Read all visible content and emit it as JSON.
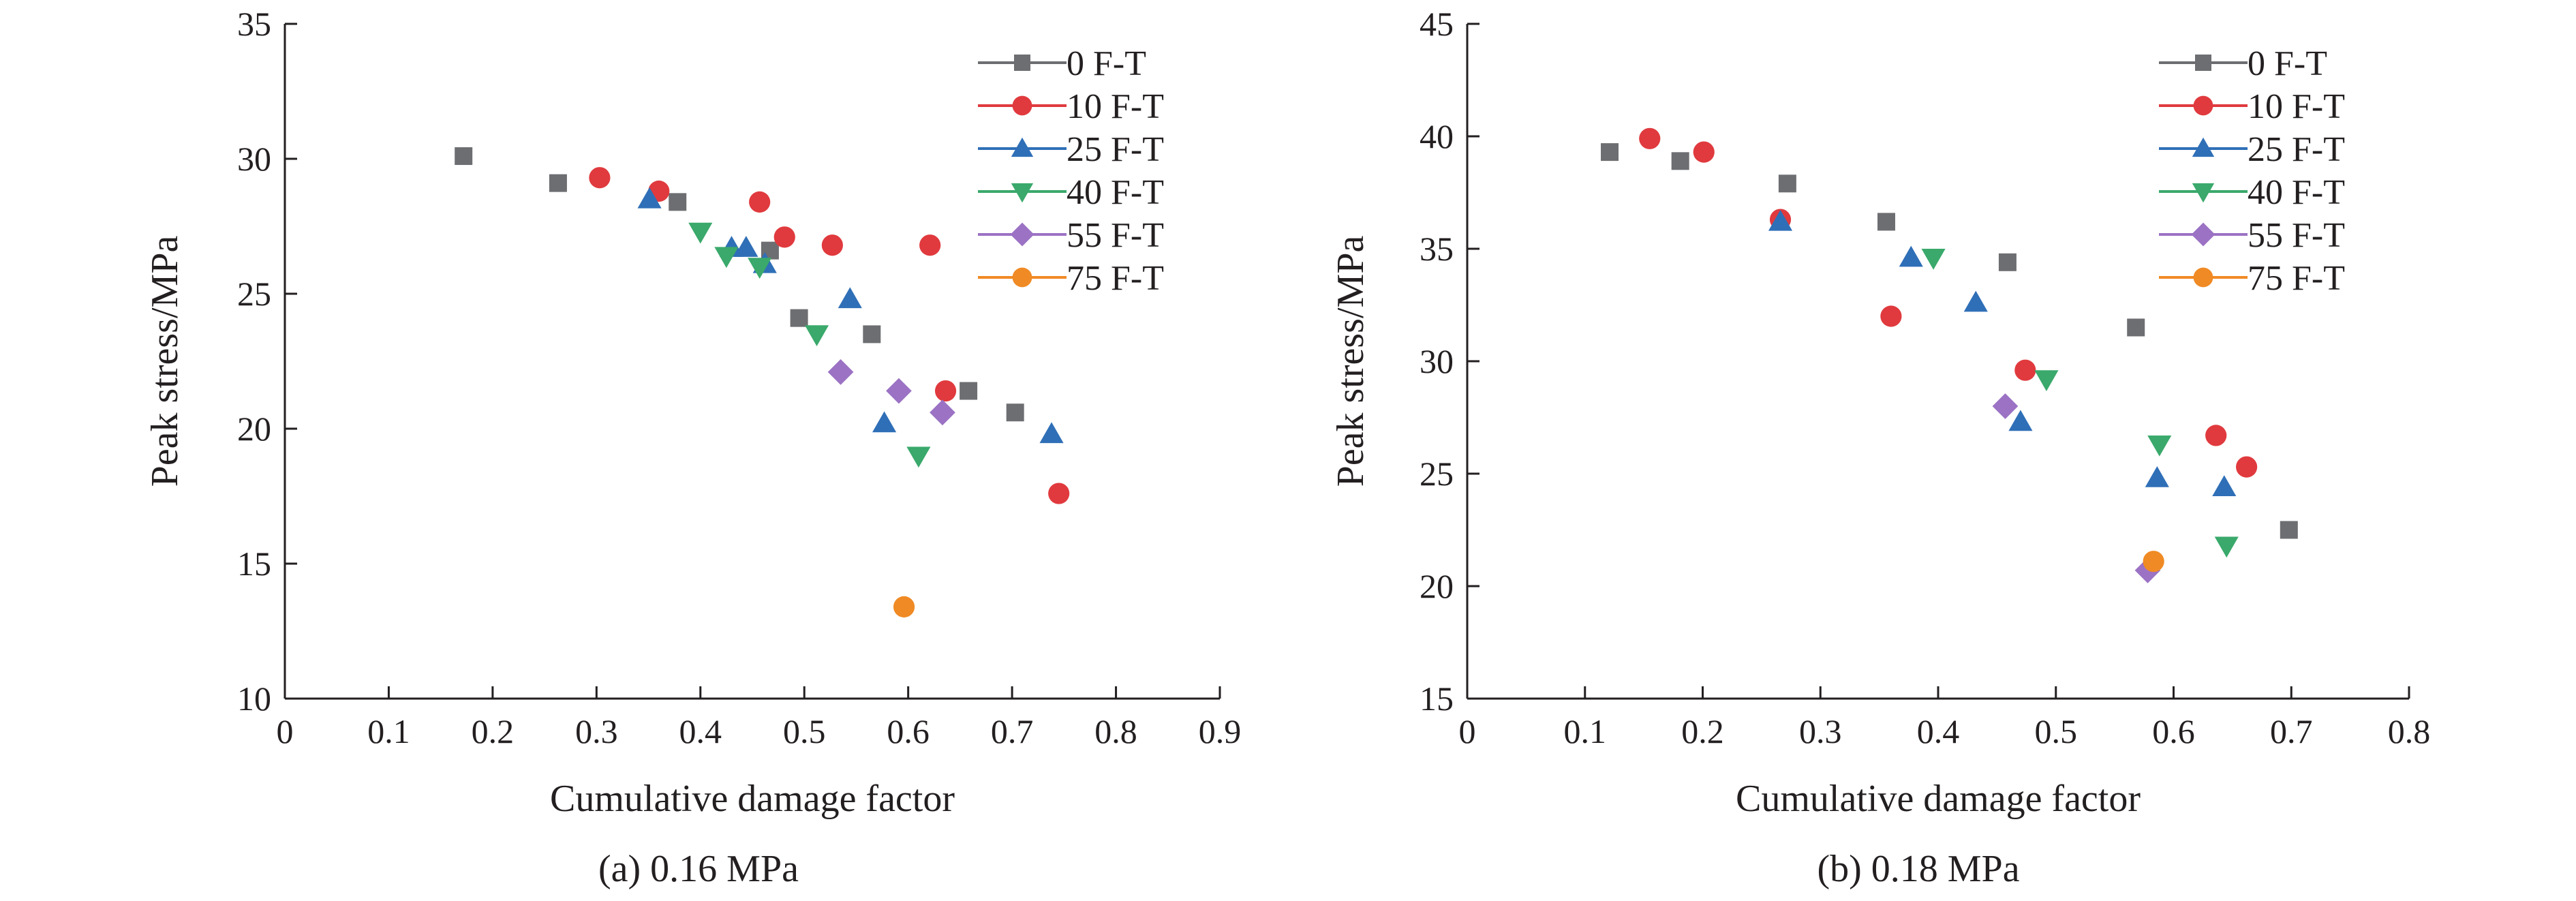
{
  "colors": {
    "axis": "#231f20",
    "series": [
      "#6d6e71",
      "#e03a3e",
      "#2f6fb7",
      "#3aa96b",
      "#9b72c4",
      "#f08a24"
    ]
  },
  "chart_data": [
    {
      "type": "scatter",
      "caption": "(a) 0.16 MPa",
      "xlabel": "Cumulative damage factor",
      "ylabel": "Peak stress/MPa",
      "xlim": [
        0,
        0.9
      ],
      "ylim": [
        10,
        35
      ],
      "x_ticks": [
        "0",
        "0.1",
        "0.2",
        "0.3",
        "0.4",
        "0.5",
        "0.6",
        "0.7",
        "0.8",
        "0.9"
      ],
      "y_ticks": [
        "10",
        "15",
        "20",
        "25",
        "30",
        "35"
      ],
      "legend_position": "top-right",
      "series": [
        {
          "name": "0  F-T",
          "marker": "square",
          "color": "#6d6e71",
          "points": [
            [
              0.172,
              30.1
            ],
            [
              0.263,
              29.1
            ],
            [
              0.378,
              28.4
            ],
            [
              0.467,
              26.6
            ],
            [
              0.495,
              24.1
            ],
            [
              0.565,
              23.5
            ],
            [
              0.658,
              21.4
            ],
            [
              0.703,
              20.6
            ]
          ]
        },
        {
          "name": "10 F-T",
          "marker": "circle",
          "color": "#e03a3e",
          "points": [
            [
              0.303,
              29.3
            ],
            [
              0.36,
              28.8
            ],
            [
              0.457,
              28.4
            ],
            [
              0.481,
              27.1
            ],
            [
              0.527,
              26.8
            ],
            [
              0.621,
              26.8
            ],
            [
              0.636,
              21.4
            ],
            [
              0.745,
              17.6
            ]
          ]
        },
        {
          "name": "25 F-T",
          "marker": "triangle-up",
          "color": "#2f6fb7",
          "points": [
            [
              0.351,
              28.5
            ],
            [
              0.43,
              26.7
            ],
            [
              0.444,
              26.7
            ],
            [
              0.462,
              26.1
            ],
            [
              0.544,
              24.8
            ],
            [
              0.577,
              20.2
            ],
            [
              0.738,
              19.8
            ]
          ]
        },
        {
          "name": "40 F-T",
          "marker": "triangle-down",
          "color": "#3aa96b",
          "points": [
            [
              0.4,
              27.3
            ],
            [
              0.425,
              26.4
            ],
            [
              0.457,
              26.0
            ],
            [
              0.512,
              23.5
            ],
            [
              0.61,
              19.0
            ]
          ]
        },
        {
          "name": "55 F-T",
          "marker": "diamond",
          "color": "#9b72c4",
          "points": [
            [
              0.535,
              22.1
            ],
            [
              0.591,
              21.4
            ],
            [
              0.633,
              20.6
            ]
          ]
        },
        {
          "name": "75 F-T",
          "marker": "circle",
          "color": "#f08a24",
          "points": [
            [
              0.596,
              13.4
            ]
          ]
        }
      ]
    },
    {
      "type": "scatter",
      "caption": "(b) 0.18 MPa",
      "xlabel": "Cumulative damage factor",
      "ylabel": "Peak stress/MPa",
      "xlim": [
        0,
        0.8
      ],
      "ylim": [
        15,
        45
      ],
      "x_ticks": [
        "0",
        "0.1",
        "0.2",
        "0.3",
        "0.4",
        "0.5",
        "0.6",
        "0.7",
        "0.8"
      ],
      "y_ticks": [
        "15",
        "20",
        "25",
        "30",
        "35",
        "40",
        "45"
      ],
      "legend_position": "top-right",
      "series": [
        {
          "name": "0  F-T",
          "marker": "square",
          "color": "#6d6e71",
          "points": [
            [
              0.121,
              39.3
            ],
            [
              0.181,
              38.9
            ],
            [
              0.272,
              37.9
            ],
            [
              0.356,
              36.2
            ],
            [
              0.459,
              34.4
            ],
            [
              0.568,
              31.5
            ],
            [
              0.698,
              22.5
            ]
          ]
        },
        {
          "name": "10 F-T",
          "marker": "circle",
          "color": "#e03a3e",
          "points": [
            [
              0.155,
              39.9
            ],
            [
              0.201,
              39.3
            ],
            [
              0.266,
              36.3
            ],
            [
              0.36,
              32.0
            ],
            [
              0.474,
              29.6
            ],
            [
              0.636,
              26.7
            ],
            [
              0.662,
              25.3
            ]
          ]
        },
        {
          "name": "25 F-T",
          "marker": "triangle-up",
          "color": "#2f6fb7",
          "points": [
            [
              0.266,
              36.2
            ],
            [
              0.377,
              34.6
            ],
            [
              0.432,
              32.6
            ],
            [
              0.47,
              27.3
            ],
            [
              0.586,
              24.8
            ],
            [
              0.643,
              24.4
            ]
          ]
        },
        {
          "name": "40 F-T",
          "marker": "triangle-down",
          "color": "#3aa96b",
          "points": [
            [
              0.396,
              34.6
            ],
            [
              0.492,
              29.2
            ],
            [
              0.588,
              26.3
            ],
            [
              0.645,
              21.8
            ]
          ]
        },
        {
          "name": "55 F-T",
          "marker": "diamond",
          "color": "#9b72c4",
          "points": [
            [
              0.457,
              28.0
            ],
            [
              0.578,
              20.7
            ]
          ]
        },
        {
          "name": "75 F-T",
          "marker": "circle",
          "color": "#f08a24",
          "points": [
            [
              0.583,
              21.1
            ]
          ]
        }
      ]
    }
  ]
}
